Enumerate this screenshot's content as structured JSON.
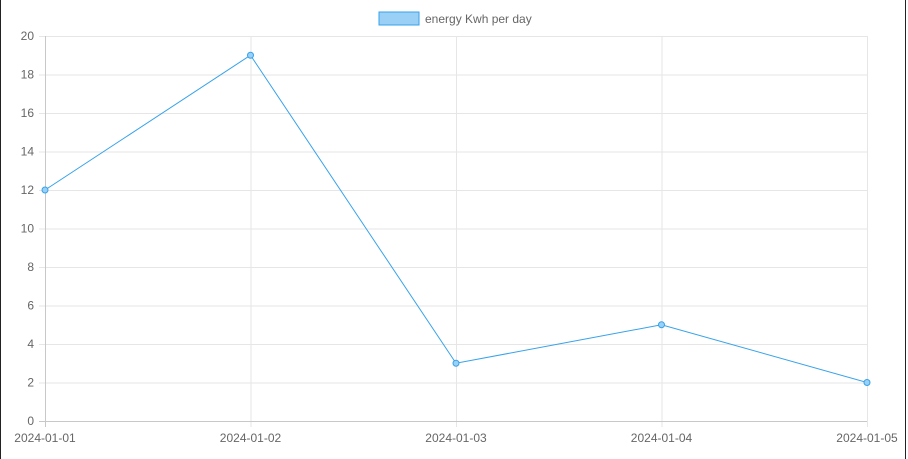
{
  "chart_data": {
    "type": "line",
    "x": [
      "2024-01-01",
      "2024-01-02",
      "2024-01-03",
      "2024-01-04",
      "2024-01-05"
    ],
    "series": [
      {
        "name": "energy Kwh per day",
        "values": [
          12,
          19,
          3,
          5,
          2
        ],
        "color": "#36a2eb",
        "fill_color": "#9ad0f5"
      }
    ],
    "ylim": [
      0,
      20
    ],
    "y_ticks": [
      0,
      2,
      4,
      6,
      8,
      10,
      12,
      14,
      16,
      18,
      20
    ],
    "grid": true,
    "legend": "top-center"
  }
}
